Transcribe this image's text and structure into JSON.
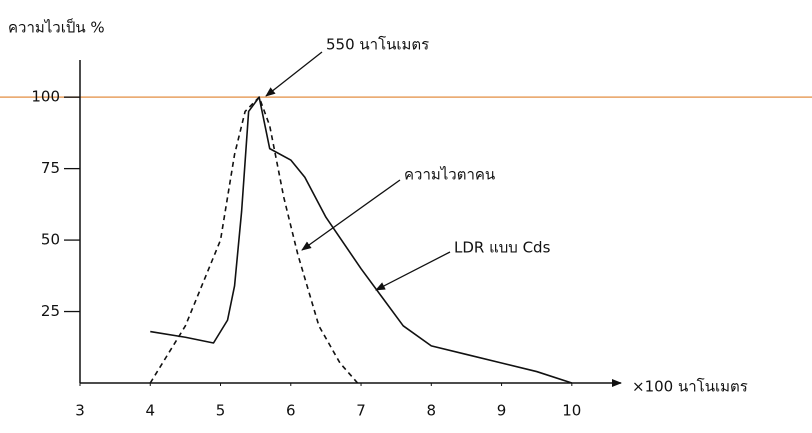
{
  "chart_data": {
    "type": "line",
    "y_label": "ความไวเป็น %",
    "x_label": "×100 นาโนเมตร",
    "xlim": [
      3,
      10.7
    ],
    "ylim": [
      0,
      113
    ],
    "xticks": [
      3,
      4,
      5,
      6,
      7,
      8,
      9,
      10
    ],
    "yticks": [
      25,
      50,
      75,
      100
    ],
    "reference_line": {
      "value": 100,
      "color": "#e8a060"
    },
    "series": [
      {
        "name": "LDR แบบ Cds",
        "color": "#111111",
        "dashed": false,
        "x": [
          4,
          4.5,
          4.9,
          5.1,
          5.2,
          5.3,
          5.4,
          5.55,
          5.7,
          6.0,
          6.2,
          6.5,
          7.0,
          7.3,
          7.6,
          8.0,
          8.5,
          9.0,
          9.5,
          10
        ],
        "values": [
          18,
          16,
          14,
          22,
          34,
          60,
          95,
          100,
          82,
          78,
          72,
          58,
          40,
          30,
          20,
          13,
          10,
          7,
          4,
          0
        ]
      },
      {
        "name": "ความไวตาคน",
        "color": "#111111",
        "dashed": true,
        "x": [
          4,
          4.5,
          5.0,
          5.2,
          5.35,
          5.55,
          5.7,
          5.9,
          6.1,
          6.4,
          6.7,
          6.95
        ],
        "values": [
          0,
          20,
          50,
          80,
          95,
          100,
          90,
          65,
          45,
          20,
          7,
          0
        ]
      }
    ],
    "annotations": [
      {
        "text": "550 นาโนเมตร"
      }
    ]
  }
}
